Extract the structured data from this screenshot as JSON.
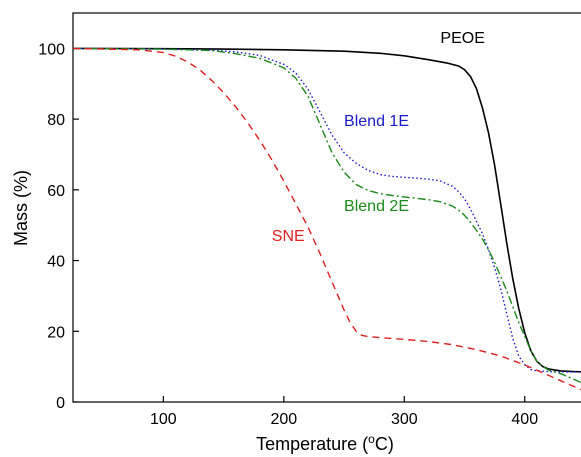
{
  "chart_data": {
    "type": "line",
    "title": "",
    "xlabel": "Temperature (",
    "xlabel_sup": "o",
    "xlabel_suffix": "C)",
    "ylabel": "Mass (%)",
    "xlim": [
      25,
      450
    ],
    "ylim": [
      0,
      110
    ],
    "xticks": [
      100,
      200,
      300,
      400
    ],
    "yticks": [
      0,
      20,
      40,
      60,
      80,
      100
    ],
    "grid": false,
    "legend": "inline labels",
    "series": [
      {
        "name": "PEOE",
        "color": "#000000",
        "dash": "solid",
        "label_at": [
          330,
          101.5
        ],
        "x": [
          25,
          100,
          150,
          200,
          250,
          280,
          300,
          320,
          335,
          345,
          350,
          355,
          360,
          365,
          370,
          375,
          380,
          385,
          390,
          395,
          400,
          405,
          410,
          415,
          420,
          430,
          440,
          450
        ],
        "y": [
          100,
          99.9,
          99.8,
          99.6,
          99.2,
          98.6,
          97.9,
          96.8,
          95.9,
          95.0,
          94.0,
          92.0,
          88.5,
          83.0,
          76.0,
          67.0,
          56.0,
          45.0,
          35.0,
          26.5,
          19.5,
          14.5,
          11.5,
          10.0,
          9.3,
          8.8,
          8.6,
          8.5
        ]
      },
      {
        "name": "Blend 1E",
        "color": "#1a1acc",
        "dash": "dotted",
        "label_at": [
          250,
          78
        ],
        "x": [
          25,
          100,
          140,
          160,
          180,
          200,
          210,
          220,
          230,
          240,
          250,
          260,
          270,
          280,
          290,
          300,
          310,
          320,
          330,
          340,
          345,
          350,
          355,
          360,
          365,
          370,
          375,
          380,
          385,
          390,
          395,
          400,
          405,
          410,
          420,
          430,
          440,
          450
        ],
        "y": [
          100,
          99.8,
          99.5,
          99.0,
          98.0,
          95.5,
          93.0,
          88.5,
          82.0,
          75.5,
          70.5,
          67.5,
          65.5,
          64.3,
          63.8,
          63.5,
          63.3,
          63.0,
          62.5,
          61.0,
          59.5,
          57.5,
          54.5,
          51.0,
          47.5,
          43.0,
          38.0,
          32.0,
          25.0,
          18.0,
          13.0,
          10.5,
          9.2,
          8.8,
          8.6,
          8.5,
          8.5,
          8.5
        ]
      },
      {
        "name": "Blend 2E",
        "color": "#1a8a1a",
        "dash": "dashdot",
        "label_at": [
          250,
          54
        ],
        "x": [
          25,
          100,
          140,
          160,
          180,
          200,
          210,
          220,
          230,
          240,
          250,
          260,
          270,
          280,
          290,
          300,
          310,
          320,
          330,
          340,
          345,
          350,
          355,
          360,
          365,
          370,
          375,
          380,
          385,
          390,
          395,
          400,
          405,
          410,
          415,
          420,
          430,
          440,
          450
        ],
        "y": [
          100,
          99.8,
          99.4,
          98.5,
          97.2,
          94.5,
          91.5,
          86.5,
          78.5,
          70.5,
          65.0,
          61.5,
          59.8,
          58.9,
          58.4,
          58.0,
          57.6,
          57.2,
          56.6,
          55.4,
          54.3,
          52.8,
          50.8,
          48.5,
          46.0,
          43.0,
          39.5,
          35.5,
          31.5,
          27.0,
          22.5,
          18.5,
          14.5,
          11.5,
          10.0,
          9.0,
          8.0,
          6.5,
          5.0
        ]
      },
      {
        "name": "SNE",
        "color": "#e02020",
        "dash": "dashed",
        "label_at": [
          190,
          45.5
        ],
        "x": [
          25,
          80,
          100,
          110,
          120,
          130,
          140,
          150,
          160,
          170,
          180,
          190,
          200,
          210,
          220,
          230,
          240,
          250,
          255,
          260,
          265,
          270,
          280,
          300,
          320,
          340,
          360,
          380,
          400,
          410,
          420,
          430,
          440,
          450
        ],
        "y": [
          100,
          99.6,
          98.8,
          97.8,
          96.2,
          94.0,
          91.0,
          87.5,
          83.5,
          79.0,
          74.0,
          68.5,
          62.5,
          56.0,
          49.5,
          42.0,
          34.0,
          26.0,
          22.5,
          20.0,
          18.8,
          18.5,
          18.2,
          17.7,
          17.1,
          16.2,
          14.8,
          13.0,
          10.5,
          9.0,
          7.5,
          6.0,
          4.5,
          3.0
        ]
      }
    ]
  }
}
